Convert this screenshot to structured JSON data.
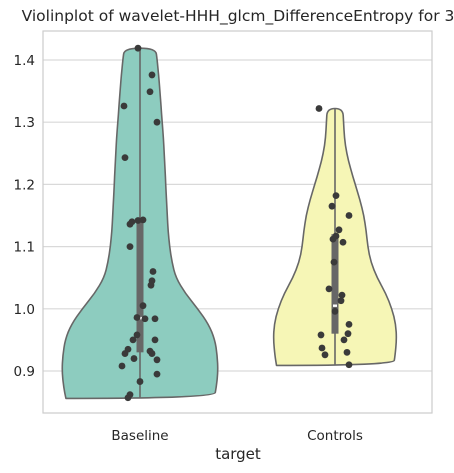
{
  "chart_data": {
    "type": "violin",
    "title": "Violinplot of wavelet-HHH_glcm_DifferenceEntropy for 3",
    "xlabel": "target",
    "ylabel": "",
    "categories": [
      "Baseline",
      "Controls"
    ],
    "ylim": [
      0.83,
      1.45
    ],
    "yticks": [
      0.9,
      1.0,
      1.1,
      1.2,
      1.3,
      1.4
    ],
    "ytick_labels": [
      "0.9",
      "1.0",
      "1.1",
      "1.2",
      "1.3",
      "1.4"
    ],
    "grid": "horizontal",
    "cut": 0,
    "colors": {
      "Baseline": "#8dccbf",
      "Controls": "#f6f6b6",
      "outline": "#676767",
      "points": "#3a3a3a",
      "grid": "#d9d9d9",
      "spine": "#cccccc"
    },
    "violins": [
      {
        "name": "Baseline",
        "min": 0.856,
        "max": 1.419,
        "q1": 0.93,
        "median": 0.985,
        "q3": 1.143,
        "profile": [
          [
            0.856,
            0.95
          ],
          [
            0.875,
            0.98
          ],
          [
            0.9,
            1.0
          ],
          [
            0.925,
            0.99
          ],
          [
            0.95,
            0.96
          ],
          [
            0.975,
            0.88
          ],
          [
            1.0,
            0.74
          ],
          [
            1.025,
            0.58
          ],
          [
            1.05,
            0.46
          ],
          [
            1.075,
            0.41
          ],
          [
            1.1,
            0.38
          ],
          [
            1.125,
            0.36
          ],
          [
            1.15,
            0.35
          ],
          [
            1.175,
            0.34
          ],
          [
            1.2,
            0.33
          ],
          [
            1.225,
            0.32
          ],
          [
            1.25,
            0.31
          ],
          [
            1.275,
            0.3
          ],
          [
            1.3,
            0.285
          ],
          [
            1.325,
            0.27
          ],
          [
            1.35,
            0.255
          ],
          [
            1.375,
            0.24
          ],
          [
            1.4,
            0.22
          ],
          [
            1.419,
            0.2
          ]
        ],
        "points": [
          [
            -0.02,
            1.419
          ],
          [
            0.12,
            1.376
          ],
          [
            -0.16,
            1.326
          ],
          [
            0.1,
            1.349
          ],
          [
            0.17,
            1.3
          ],
          [
            -0.15,
            1.243
          ],
          [
            -0.1,
            1.136
          ],
          [
            -0.08,
            1.14
          ],
          [
            -0.02,
            1.142
          ],
          [
            0.03,
            1.143
          ],
          [
            -0.1,
            1.1
          ],
          [
            0.13,
            1.06
          ],
          [
            0.12,
            1.045
          ],
          [
            0.11,
            1.038
          ],
          [
            0.03,
            1.005
          ],
          [
            0.15,
            0.984
          ],
          [
            0.05,
            0.984
          ],
          [
            -0.03,
            0.986
          ],
          [
            0.15,
            0.95
          ],
          [
            -0.03,
            0.958
          ],
          [
            -0.07,
            0.95
          ],
          [
            0.1,
            0.932
          ],
          [
            0.12,
            0.928
          ],
          [
            -0.12,
            0.935
          ],
          [
            -0.15,
            0.928
          ],
          [
            -0.06,
            0.92
          ],
          [
            0.17,
            0.918
          ],
          [
            -0.18,
            0.908
          ],
          [
            0.17,
            0.895
          ],
          [
            0.0,
            0.883
          ],
          [
            -0.1,
            0.862
          ],
          [
            -0.12,
            0.857
          ]
        ]
      },
      {
        "name": "Controls",
        "min": 0.909,
        "max": 1.322,
        "q1": 0.96,
        "median": 1.005,
        "q3": 1.12,
        "profile": [
          [
            0.909,
            0.75
          ],
          [
            0.925,
            0.77
          ],
          [
            0.95,
            0.79
          ],
          [
            0.975,
            0.78
          ],
          [
            1.0,
            0.73
          ],
          [
            1.025,
            0.65
          ],
          [
            1.05,
            0.54
          ],
          [
            1.075,
            0.46
          ],
          [
            1.1,
            0.42
          ],
          [
            1.125,
            0.4
          ],
          [
            1.15,
            0.37
          ],
          [
            1.175,
            0.32
          ],
          [
            1.2,
            0.26
          ],
          [
            1.225,
            0.2
          ],
          [
            1.25,
            0.15
          ],
          [
            1.275,
            0.12
          ],
          [
            1.3,
            0.11
          ],
          [
            1.322,
            0.1
          ]
        ],
        "points": [
          [
            -0.16,
            1.322
          ],
          [
            0.01,
            1.182
          ],
          [
            -0.03,
            1.165
          ],
          [
            0.14,
            1.15
          ],
          [
            0.04,
            1.127
          ],
          [
            0.01,
            1.117
          ],
          [
            -0.02,
            1.112
          ],
          [
            0.08,
            1.107
          ],
          [
            -0.01,
            1.075
          ],
          [
            -0.06,
            1.032
          ],
          [
            0.07,
            1.022
          ],
          [
            0.06,
            1.013
          ],
          [
            0.0,
            0.996
          ],
          [
            0.14,
            0.975
          ],
          [
            -0.14,
            0.958
          ],
          [
            0.13,
            0.96
          ],
          [
            0.09,
            0.95
          ],
          [
            0.12,
            0.93
          ],
          [
            -0.13,
            0.937
          ],
          [
            -0.1,
            0.926
          ],
          [
            0.14,
            0.91
          ]
        ]
      }
    ]
  }
}
